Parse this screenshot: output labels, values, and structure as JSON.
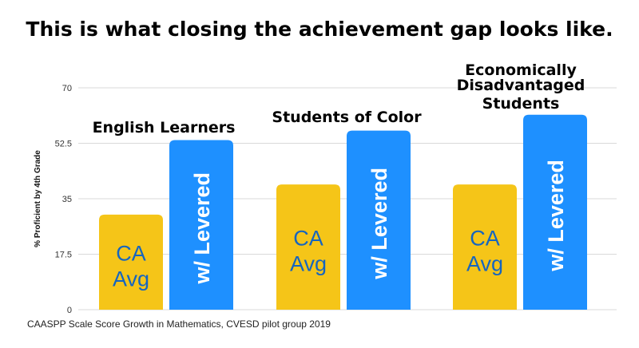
{
  "title": "This is what closing the achievement gap looks like.",
  "source": "CAASPP Scale Score Growth in Mathematics, CVESD pilot group 2019",
  "colors": {
    "ca_avg": "#F5C518",
    "levered": "#1E90FF",
    "grid": "#d9d9d9",
    "axis_text": "#333333",
    "bar_text": "#ffffff",
    "ca_text": "#1565C0"
  },
  "chart_data": {
    "type": "bar",
    "ylabel": "% Proficient by 4th Grade",
    "ylim": [
      0,
      70
    ],
    "yticks": [
      "0",
      "17.5",
      "35",
      "52.5",
      "70"
    ],
    "grid": true,
    "categories": [
      "English Learners",
      "Students of Color",
      "Economically Disadvantaged Students"
    ],
    "series": [
      {
        "name": "CA Avg",
        "values": [
          30,
          39.5,
          39.5
        ]
      },
      {
        "name": "w/ Levered",
        "values": [
          53.5,
          56.5,
          61.5
        ]
      }
    ]
  }
}
